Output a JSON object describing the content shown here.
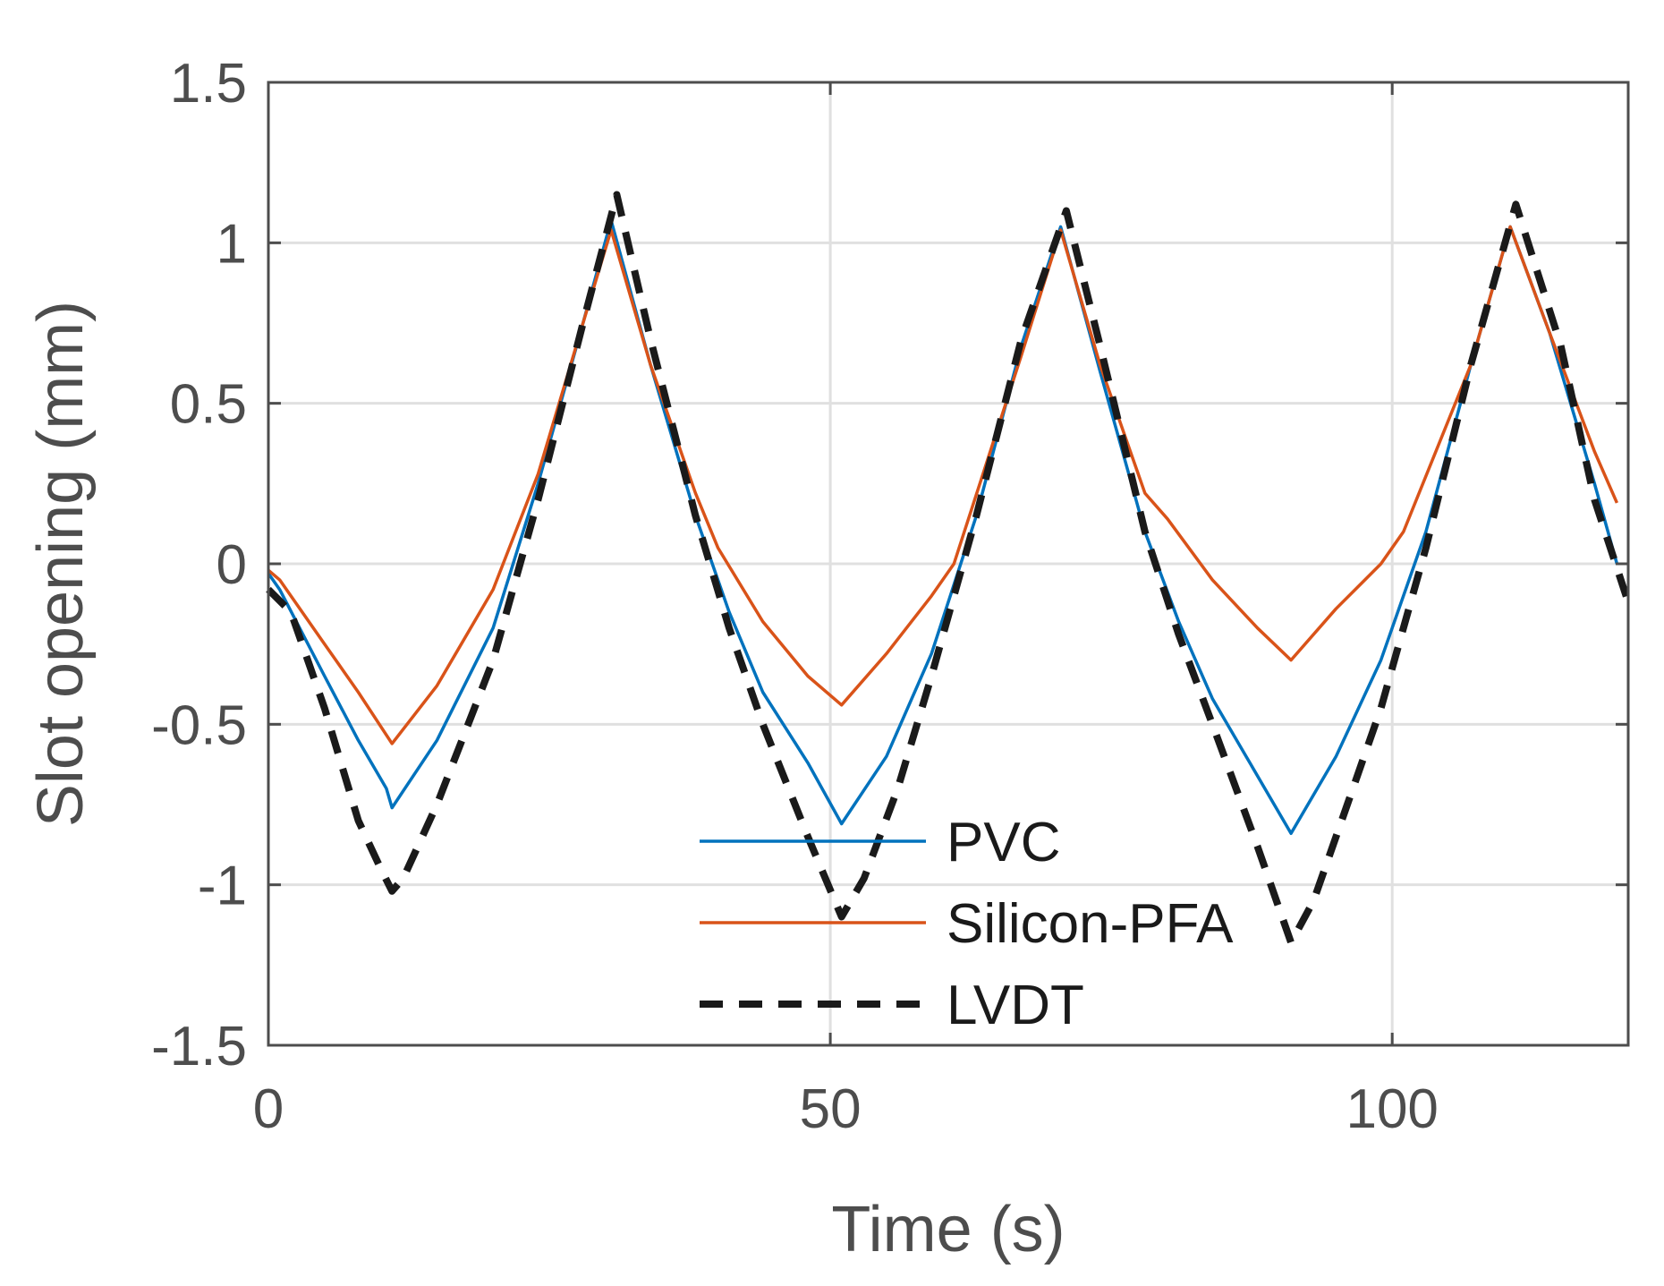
{
  "chart_data": {
    "type": "line",
    "title": "",
    "xlabel": "Time (s)",
    "ylabel": "Slot opening (mm)",
    "xlim": [
      0,
      121
    ],
    "ylim": [
      -1.5,
      1.5
    ],
    "xticks": [
      0,
      50,
      100
    ],
    "xtick_labels": [
      "0",
      "50",
      "100"
    ],
    "yticks": [
      -1.5,
      -1,
      -0.5,
      0,
      0.5,
      1,
      1.5
    ],
    "ytick_labels": [
      "-1.5",
      "-1",
      "-0.5",
      "0",
      "0.5",
      "1",
      "1.5"
    ],
    "grid": true,
    "legend_position": "bottom-center",
    "colors": {
      "axis": "#4d4d4d",
      "grid": "#e0e0e0"
    },
    "series": [
      {
        "name": "PVC",
        "color": "#0072bd",
        "dash": "solid",
        "x": [
          0,
          1,
          5,
          8,
          10.5,
          11,
          15,
          20,
          24,
          28,
          30.5,
          34,
          38,
          41,
          44,
          48,
          51,
          55,
          59,
          63,
          67,
          70.5,
          74,
          78,
          81,
          84,
          87,
          91,
          95,
          99,
          103,
          107,
          110.5,
          114,
          118,
          120
        ],
        "y": [
          -0.03,
          -0.08,
          -0.35,
          -0.55,
          -0.7,
          -0.76,
          -0.55,
          -0.2,
          0.25,
          0.75,
          1.07,
          0.62,
          0.15,
          -0.15,
          -0.4,
          -0.62,
          -0.81,
          -0.6,
          -0.28,
          0.15,
          0.68,
          1.05,
          0.6,
          0.1,
          -0.18,
          -0.42,
          -0.6,
          -0.84,
          -0.6,
          -0.3,
          0.1,
          0.62,
          1.05,
          0.72,
          0.25,
          0.0
        ]
      },
      {
        "name": "Silicon-PFA",
        "color": "#d95319",
        "dash": "solid",
        "x": [
          0,
          1,
          5,
          8,
          11,
          15,
          20,
          24,
          28,
          30.5,
          34,
          38,
          40,
          44,
          48,
          51,
          55,
          59,
          61,
          67,
          70.5,
          74,
          78,
          80,
          84,
          88,
          91,
          95,
          99,
          101,
          107,
          110.5,
          114,
          118,
          120
        ],
        "y": [
          -0.02,
          -0.05,
          -0.25,
          -0.4,
          -0.56,
          -0.38,
          -0.08,
          0.28,
          0.75,
          1.04,
          0.62,
          0.22,
          0.05,
          -0.18,
          -0.35,
          -0.44,
          -0.28,
          -0.1,
          0.0,
          0.65,
          1.04,
          0.62,
          0.22,
          0.14,
          -0.05,
          -0.2,
          -0.3,
          -0.14,
          0.0,
          0.1,
          0.62,
          1.05,
          0.72,
          0.35,
          0.19
        ]
      },
      {
        "name": "LVDT",
        "color": "#1a1a1a",
        "dash": "dashed",
        "x": [
          0,
          2,
          5,
          8,
          10,
          11,
          12,
          15,
          20,
          24,
          28,
          31,
          34,
          38,
          41,
          44,
          48,
          51,
          53,
          56,
          59,
          63,
          67,
          71,
          74,
          78,
          81,
          84,
          88,
          91,
          93,
          96,
          99,
          103,
          107,
          111,
          115,
          118,
          121
        ],
        "y": [
          -0.08,
          -0.15,
          -0.45,
          -0.8,
          -0.95,
          -1.02,
          -0.98,
          -0.75,
          -0.3,
          0.2,
          0.75,
          1.15,
          0.7,
          0.15,
          -0.2,
          -0.5,
          -0.85,
          -1.1,
          -0.98,
          -0.7,
          -0.35,
          0.15,
          0.7,
          1.1,
          0.68,
          0.1,
          -0.22,
          -0.5,
          -0.88,
          -1.18,
          -1.05,
          -0.75,
          -0.45,
          0.05,
          0.62,
          1.12,
          0.68,
          0.2,
          -0.12
        ]
      }
    ]
  }
}
